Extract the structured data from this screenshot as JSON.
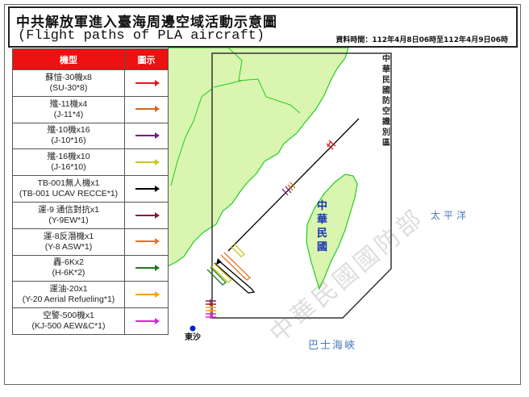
{
  "header": {
    "title": "中共解放軍進入臺海周邊空域活動示意圖",
    "subtitle": "(Flight paths of PLA aircraft)",
    "datetime": "資料時間：112年4月8日06時至112年4月9日06時"
  },
  "legend": {
    "col_type": "機型",
    "col_icon": "圖示",
    "items": [
      {
        "zh": "蘇愷-30機x8",
        "en": "(SU-30*8)",
        "color": "#e8141c"
      },
      {
        "zh": "殲-11機x4",
        "en": "(J-11*4)",
        "color": "#d2691e"
      },
      {
        "zh": "殲-10機x16",
        "en": "(J-10*16)",
        "color": "#7a1a80"
      },
      {
        "zh": "殲-16機x10",
        "en": "(J-16*10)",
        "color": "#c8c81e"
      },
      {
        "zh": "TB-001無人機x1",
        "en": "(TB-001 UCAV RECCE*1)",
        "color": "#000000"
      },
      {
        "zh": "運-9 通信對抗x1",
        "en": "(Y-9EW*1)",
        "color": "#8b1a3a"
      },
      {
        "zh": "運-8反潛機x1",
        "en": "(Y-8 ASW*1)",
        "color": "#f07020"
      },
      {
        "zh": "轟-6Kx2",
        "en": "(H-6K*2)",
        "color": "#1e7a1e"
      },
      {
        "zh": "運油-20x1",
        "en": "(Y-20 Aerial Refueling*1)",
        "color": "#f5a020"
      },
      {
        "zh": "空警-500機x1",
        "en": "(KJ-500 AEW&C*1)",
        "color": "#e020d0"
      }
    ]
  },
  "map": {
    "adiz_label": "中華民國防空識別區",
    "taiwan_label": "中華民國",
    "pacific_label": "太平洋",
    "bashi_label": "巴士海峽",
    "dongsha_label": "東沙",
    "watermark": "中華民國國防部",
    "land_color": "#d9f5b0",
    "coast_color": "#22cc22"
  }
}
